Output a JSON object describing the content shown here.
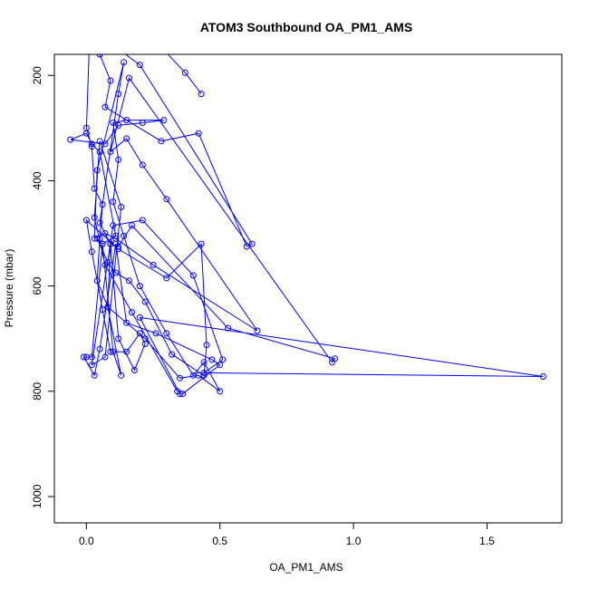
{
  "chart_data": {
    "type": "line",
    "title": "ATOM3 Southbound OA_PM1_AMS",
    "xlabel": "OA_PM1_AMS",
    "ylabel": "Pressure (mbar)",
    "xlim": [
      -0.12,
      1.78
    ],
    "ylim": [
      1050,
      160
    ],
    "y_reversed": true,
    "x_ticks": [
      0.0,
      0.5,
      1.0,
      1.5
    ],
    "x_tick_labels": [
      "0.0",
      "0.5",
      "1.0",
      "1.5"
    ],
    "y_ticks": [
      200,
      400,
      600,
      800,
      1000
    ],
    "y_tick_labels": [
      "200",
      "400",
      "600",
      "800",
      "1000"
    ],
    "series_color": "#0000ff",
    "points": [
      [
        0.43,
        235
      ],
      [
        0.37,
        195
      ],
      [
        0.25,
        130
      ],
      [
        0.12,
        150
      ],
      [
        0.2,
        180
      ],
      [
        0.62,
        520
      ],
      [
        0.6,
        525
      ],
      [
        0.42,
        310
      ],
      [
        0.28,
        325
      ],
      [
        0.07,
        260
      ],
      [
        0.09,
        210
      ],
      [
        0.05,
        160
      ],
      [
        0.01,
        155
      ],
      [
        0.0,
        300
      ],
      [
        0.02,
        335
      ],
      [
        0.03,
        415
      ],
      [
        0.06,
        445
      ],
      [
        0.05,
        510
      ],
      [
        0.04,
        590
      ],
      [
        0.08,
        640
      ],
      [
        0.22,
        700
      ],
      [
        0.35,
        775
      ],
      [
        0.42,
        770
      ],
      [
        0.5,
        800
      ],
      [
        0.44,
        745
      ],
      [
        0.4,
        770
      ],
      [
        0.3,
        690
      ],
      [
        0.2,
        600
      ],
      [
        0.14,
        505
      ],
      [
        0.1,
        440
      ],
      [
        0.12,
        360
      ],
      [
        0.1,
        290
      ],
      [
        0.15,
        285
      ],
      [
        0.29,
        285
      ],
      [
        0.21,
        290
      ],
      [
        0.12,
        295
      ],
      [
        0.07,
        330
      ],
      [
        -0.06,
        322
      ],
      [
        0.0,
        310
      ],
      [
        0.02,
        330
      ],
      [
        0.05,
        345
      ],
      [
        0.11,
        505
      ],
      [
        0.06,
        520
      ],
      [
        0.04,
        510
      ],
      [
        0.08,
        555
      ],
      [
        0.11,
        575
      ],
      [
        0.16,
        590
      ],
      [
        0.22,
        630
      ],
      [
        0.32,
        730
      ],
      [
        0.44,
        770
      ],
      [
        0.45,
        712
      ],
      [
        0.43,
        520
      ],
      [
        0.3,
        585
      ],
      [
        0.12,
        530
      ],
      [
        0.0,
        475
      ],
      [
        0.02,
        535
      ],
      [
        0.06,
        645
      ],
      [
        0.09,
        725
      ],
      [
        0.15,
        725
      ],
      [
        0.2,
        690
      ],
      [
        0.22,
        710
      ],
      [
        0.18,
        760
      ],
      [
        0.12,
        700
      ],
      [
        0.09,
        520
      ],
      [
        0.05,
        480
      ],
      [
        0.12,
        235
      ],
      [
        0.14,
        175
      ],
      [
        0.04,
        380
      ],
      [
        0.03,
        510
      ],
      [
        0.07,
        500
      ],
      [
        0.11,
        510
      ],
      [
        0.25,
        560
      ],
      [
        0.64,
        685
      ],
      [
        0.3,
        435
      ],
      [
        0.21,
        370
      ],
      [
        0.15,
        320
      ],
      [
        0.09,
        345
      ],
      [
        0.16,
        205
      ],
      [
        0.92,
        745
      ],
      [
        0.93,
        738
      ],
      [
        0.53,
        680
      ],
      [
        0.17,
        485
      ],
      [
        0.12,
        525
      ],
      [
        0.09,
        520
      ],
      [
        0.08,
        640
      ],
      [
        0.13,
        770
      ],
      [
        0.1,
        725
      ],
      [
        0.06,
        520
      ],
      [
        0.02,
        735
      ],
      [
        0.0,
        735
      ],
      [
        -0.01,
        735
      ],
      [
        0.03,
        770
      ],
      [
        0.05,
        720
      ],
      [
        0.11,
        520
      ],
      [
        0.15,
        670
      ],
      [
        0.26,
        690
      ],
      [
        0.47,
        740
      ],
      [
        0.5,
        750
      ],
      [
        0.36,
        805
      ],
      [
        0.35,
        805
      ],
      [
        0.2,
        660
      ],
      [
        1.71,
        772
      ],
      [
        0.44,
        765
      ],
      [
        0.51,
        740
      ],
      [
        0.4,
        580
      ],
      [
        0.21,
        475
      ],
      [
        0.1,
        485
      ],
      [
        0.02,
        750
      ],
      [
        0.07,
        735
      ],
      [
        0.13,
        450
      ],
      [
        0.05,
        325
      ],
      [
        0.03,
        470
      ],
      [
        0.07,
        560
      ],
      [
        0.17,
        650
      ],
      [
        0.34,
        800
      ]
    ]
  }
}
